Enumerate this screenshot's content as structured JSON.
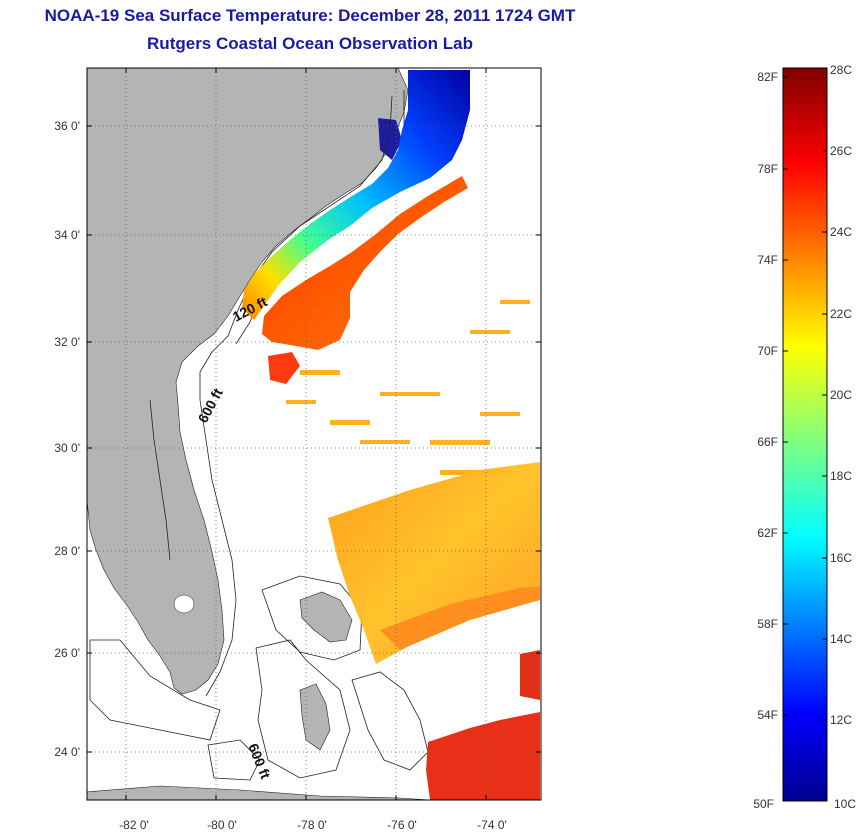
{
  "header": {
    "title": "NOAA-19 Sea Surface Temperature:  December 28, 2011 1724 GMT",
    "subtitle": "Rutgers Coastal Ocean Observation Lab"
  },
  "map": {
    "lat_ticks": [
      "36 0'",
      "34 0'",
      "32 0'",
      "30 0'",
      "28 0'",
      "26 0'",
      "24 0'"
    ],
    "lon_ticks": [
      "-82 0'",
      "-80 0'",
      "-78 0'",
      "-76 0'",
      "-74 0'"
    ],
    "depth_labels": {
      "shelf_120": "120 ft",
      "slope_600_north": "600 ft",
      "slope_600_south": "600 ft"
    },
    "land_color": "#b4b4b4",
    "ocean_nodata_color": "#ffffff"
  },
  "colorbar": {
    "fahrenheit_labels": [
      "82F",
      "78F",
      "74F",
      "70F",
      "66F",
      "62F",
      "58F",
      "54F",
      "50F"
    ],
    "celsius_labels": [
      "28C",
      "26C",
      "24C",
      "22C",
      "20C",
      "18C",
      "16C",
      "14C",
      "12C",
      "10C"
    ],
    "colormap": "jet",
    "range_c": [
      10,
      28
    ]
  }
}
